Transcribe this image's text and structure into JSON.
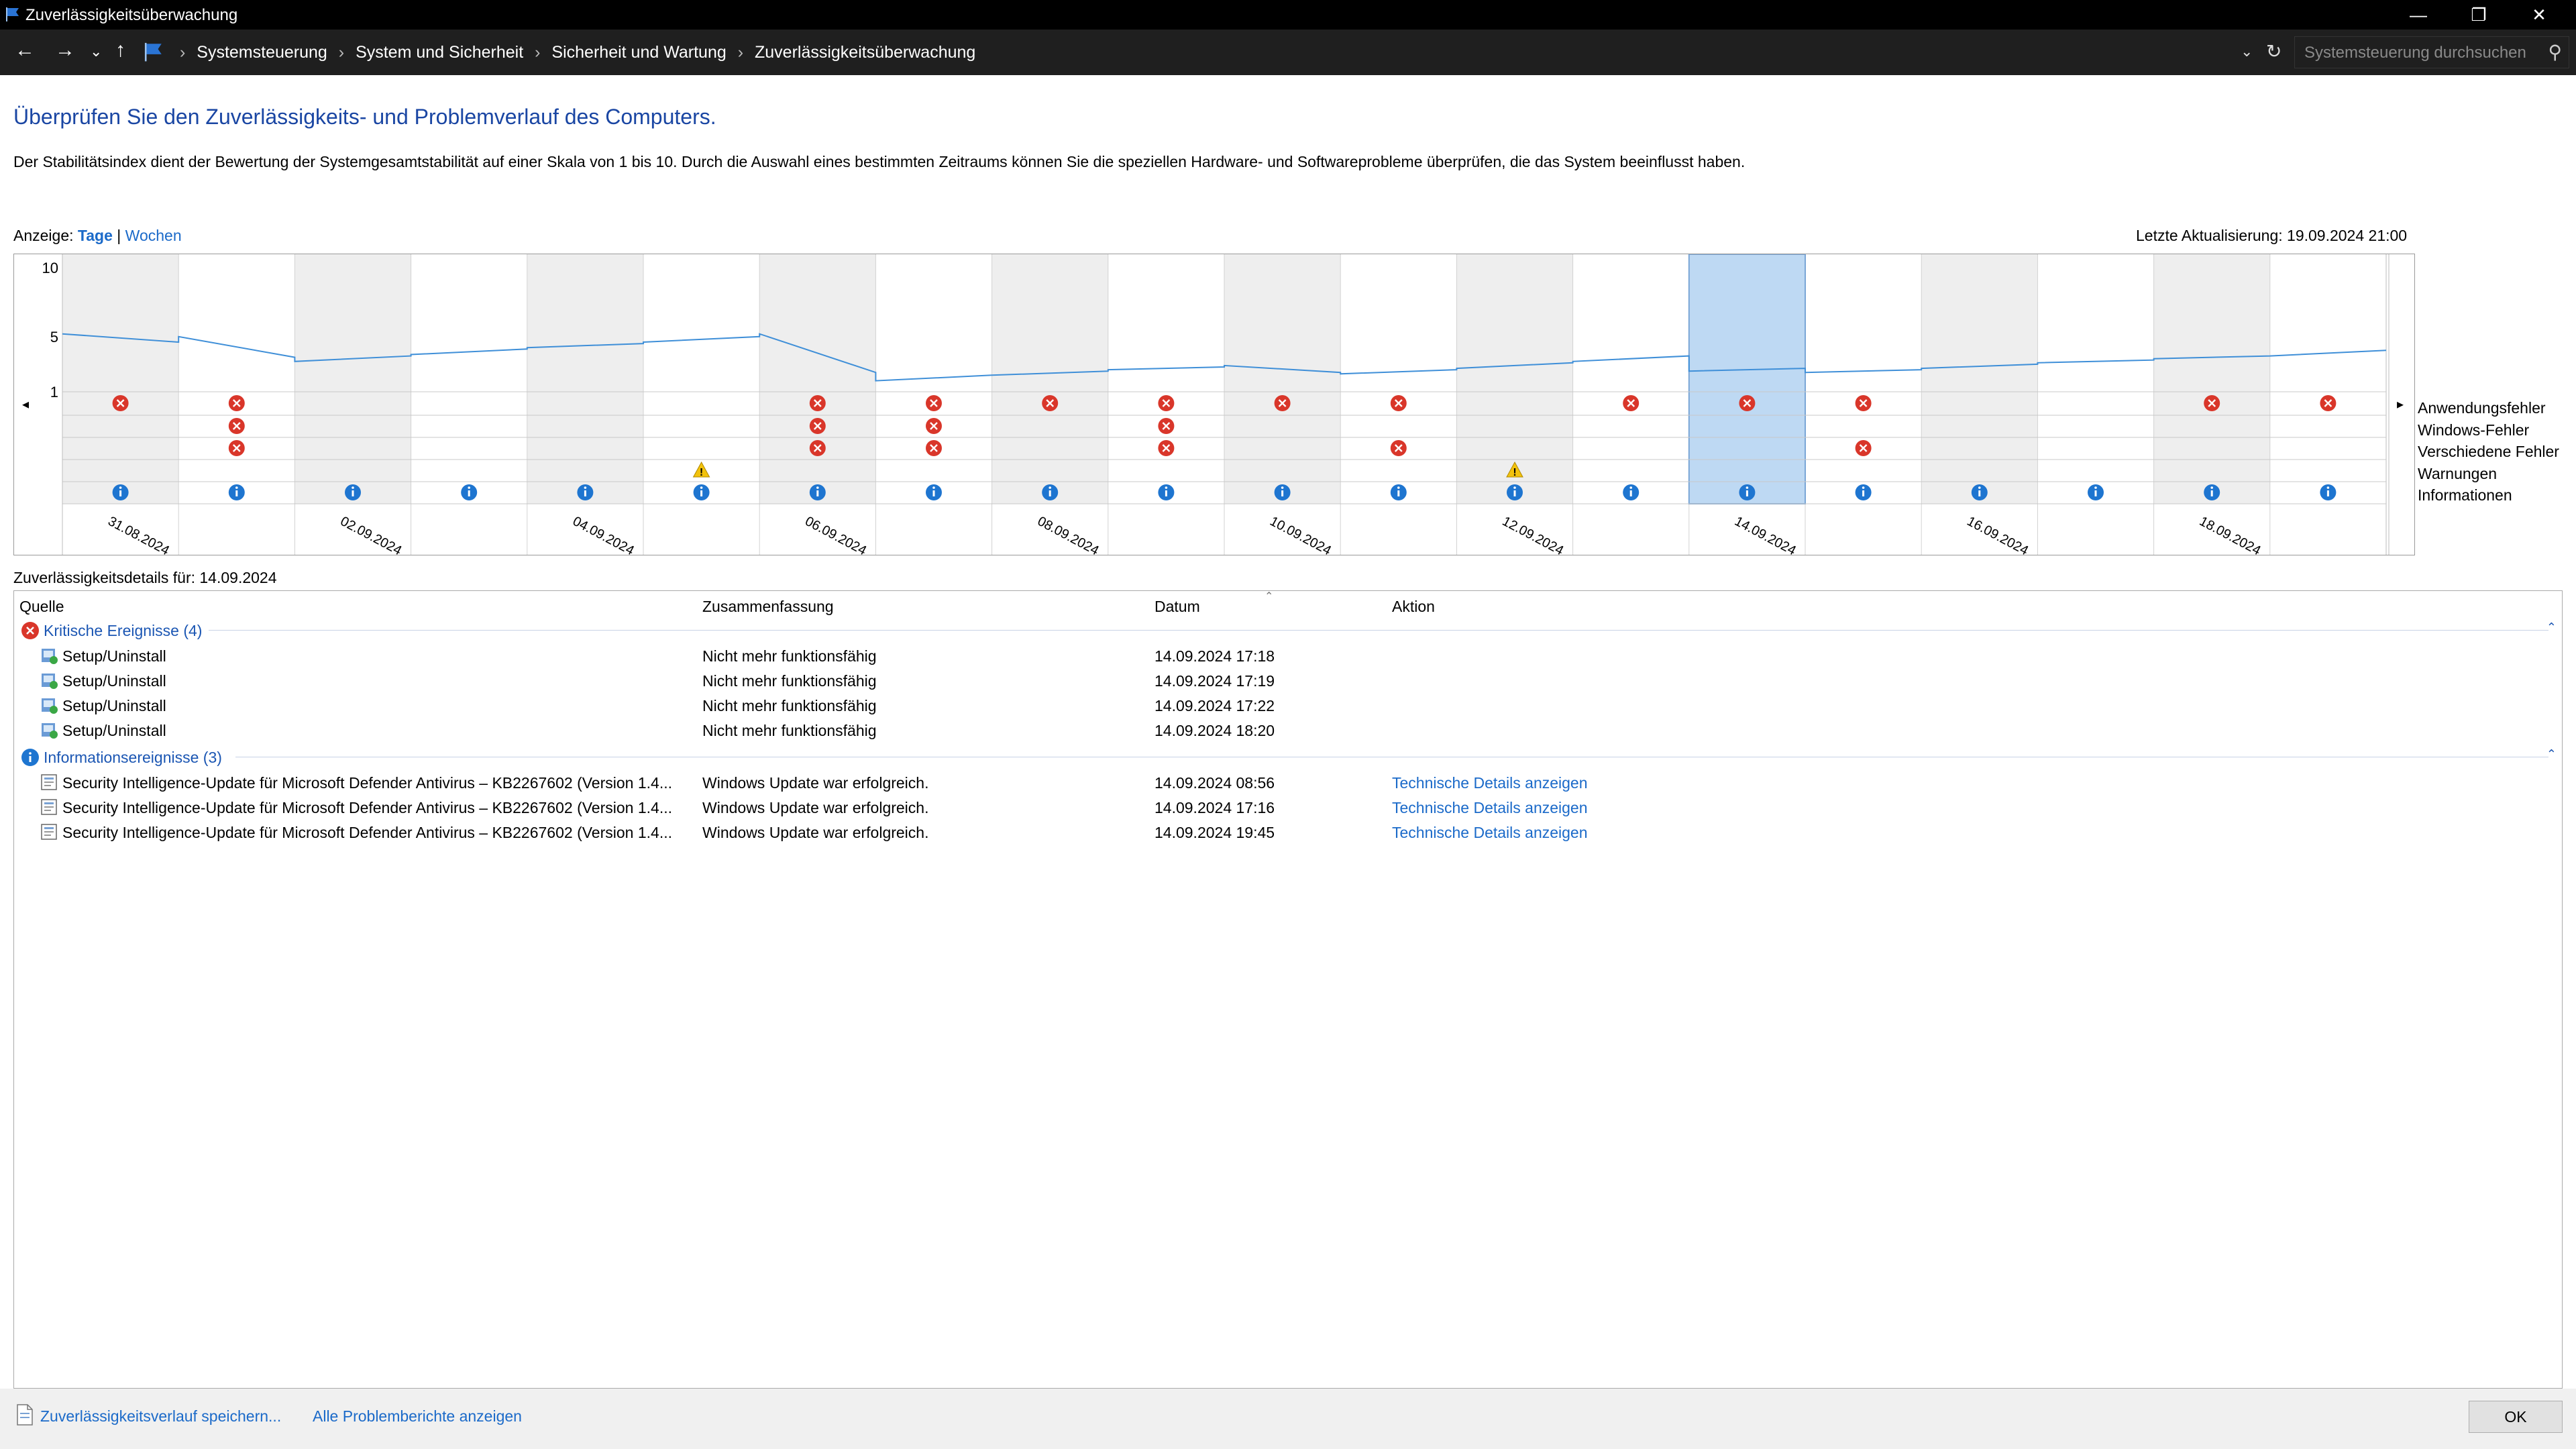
{
  "window": {
    "title": "Zuverlässigkeitsüberwachung"
  },
  "address": {
    "breadcrumbs": [
      "Systemsteuerung",
      "System und Sicherheit",
      "Sicherheit und Wartung",
      "Zuverlässigkeitsüberwachung"
    ],
    "search_placeholder": "Systemsteuerung durchsuchen"
  },
  "header": {
    "title": "Überprüfen Sie den Zuverlässigkeits- und Problemverlauf des Computers.",
    "description": "Der Stabilitätsindex dient der Bewertung der Systemgesamtstabilität auf einer Skala von 1 bis 10. Durch die Auswahl eines bestimmten Zeitraums können Sie die speziellen Hardware- und Softwareprobleme überprüfen, die das System beeinflusst haben."
  },
  "view": {
    "label": "Anzeige:",
    "days": "Tage",
    "separator": "|",
    "weeks": "Wochen"
  },
  "last_update": "Letzte Aktualisierung: 19.09.2024 21:00",
  "chart_data": {
    "type": "line",
    "y_ticks": [
      "10",
      "5",
      "1"
    ],
    "ylim": [
      1,
      10
    ],
    "dates": [
      "31.08.2024",
      "02.09.2024",
      "04.09.2024",
      "06.09.2024",
      "08.09.2024",
      "10.09.2024",
      "12.09.2024",
      "14.09.2024",
      "16.09.2024",
      "18.09.2024"
    ],
    "columns": 20,
    "selected_column": 14,
    "stability_index_start": [
      5.2,
      5.0,
      3.2,
      3.7,
      4.2,
      4.6,
      5.2,
      1.8,
      2.2,
      2.6,
      2.9,
      2.3,
      2.7,
      3.2,
      2.5,
      2.4,
      2.7,
      3.1,
      3.4,
      3.6
    ],
    "stability_index_end": [
      4.6,
      3.5,
      3.6,
      4.1,
      4.5,
      5.0,
      2.4,
      2.2,
      2.5,
      2.8,
      2.4,
      2.6,
      3.1,
      3.6,
      2.7,
      2.6,
      3.0,
      3.3,
      3.6,
      4.0
    ],
    "row_labels": [
      "Anwendungsfehler",
      "Windows-Fehler",
      "Verschiedene Fehler",
      "Warnungen",
      "Informationen"
    ],
    "events": {
      "Anwendungsfehler": [
        1,
        1,
        0,
        0,
        0,
        0,
        1,
        1,
        1,
        1,
        1,
        1,
        0,
        1,
        1,
        1,
        0,
        0,
        1,
        1
      ],
      "Windows-Fehler": [
        0,
        1,
        0,
        0,
        0,
        0,
        1,
        1,
        0,
        1,
        0,
        0,
        0,
        0,
        0,
        0,
        0,
        0,
        0,
        0
      ],
      "Verschiedene Fehler": [
        0,
        1,
        0,
        0,
        0,
        0,
        1,
        1,
        0,
        1,
        0,
        1,
        0,
        0,
        0,
        1,
        0,
        0,
        0,
        0
      ],
      "Warnungen": [
        0,
        0,
        0,
        0,
        0,
        1,
        0,
        0,
        0,
        0,
        0,
        0,
        1,
        0,
        0,
        0,
        0,
        0,
        0,
        0
      ],
      "Informationen": [
        1,
        1,
        1,
        1,
        1,
        1,
        1,
        1,
        1,
        1,
        1,
        1,
        1,
        1,
        1,
        1,
        1,
        1,
        1,
        1
      ]
    },
    "colors": {
      "line": "#3f8fd8",
      "selected": "#bed9f3",
      "error": "#d9362a",
      "info": "#1e75d0",
      "warning": "#f2c20c"
    }
  },
  "details": {
    "title": "Zuverlässigkeitsdetails für: 14.09.2024",
    "columns": {
      "source": "Quelle",
      "summary": "Zusammenfassung",
      "date": "Datum",
      "action": "Aktion"
    },
    "groups": [
      {
        "label": "Kritische Ereignisse (4)",
        "icon": "error-icon",
        "rows": [
          {
            "source": "Setup/Uninstall",
            "summary": "Nicht mehr funktionsfähig",
            "date": "14.09.2024 17:18",
            "action": ""
          },
          {
            "source": "Setup/Uninstall",
            "summary": "Nicht mehr funktionsfähig",
            "date": "14.09.2024 17:19",
            "action": ""
          },
          {
            "source": "Setup/Uninstall",
            "summary": "Nicht mehr funktionsfähig",
            "date": "14.09.2024 17:22",
            "action": ""
          },
          {
            "source": "Setup/Uninstall",
            "summary": "Nicht mehr funktionsfähig",
            "date": "14.09.2024 18:20",
            "action": ""
          }
        ]
      },
      {
        "label": "Informationsereignisse (3)",
        "icon": "info-icon",
        "rows": [
          {
            "source": "Security Intelligence-Update für Microsoft Defender Antivirus – KB2267602 (Version 1.4...",
            "summary": "Windows Update war erfolgreich.",
            "date": "14.09.2024 08:56",
            "action": "Technische Details anzeigen"
          },
          {
            "source": "Security Intelligence-Update für Microsoft Defender Antivirus – KB2267602 (Version 1.4...",
            "summary": "Windows Update war erfolgreich.",
            "date": "14.09.2024 17:16",
            "action": "Technische Details anzeigen"
          },
          {
            "source": "Security Intelligence-Update für Microsoft Defender Antivirus – KB2267602 (Version 1.4...",
            "summary": "Windows Update war erfolgreich.",
            "date": "14.09.2024 19:45",
            "action": "Technische Details anzeigen"
          }
        ]
      }
    ]
  },
  "footer": {
    "save_link": "Zuverlässigkeitsverlauf speichern...",
    "reports_link": "Alle Problemberichte anzeigen",
    "ok": "OK"
  }
}
